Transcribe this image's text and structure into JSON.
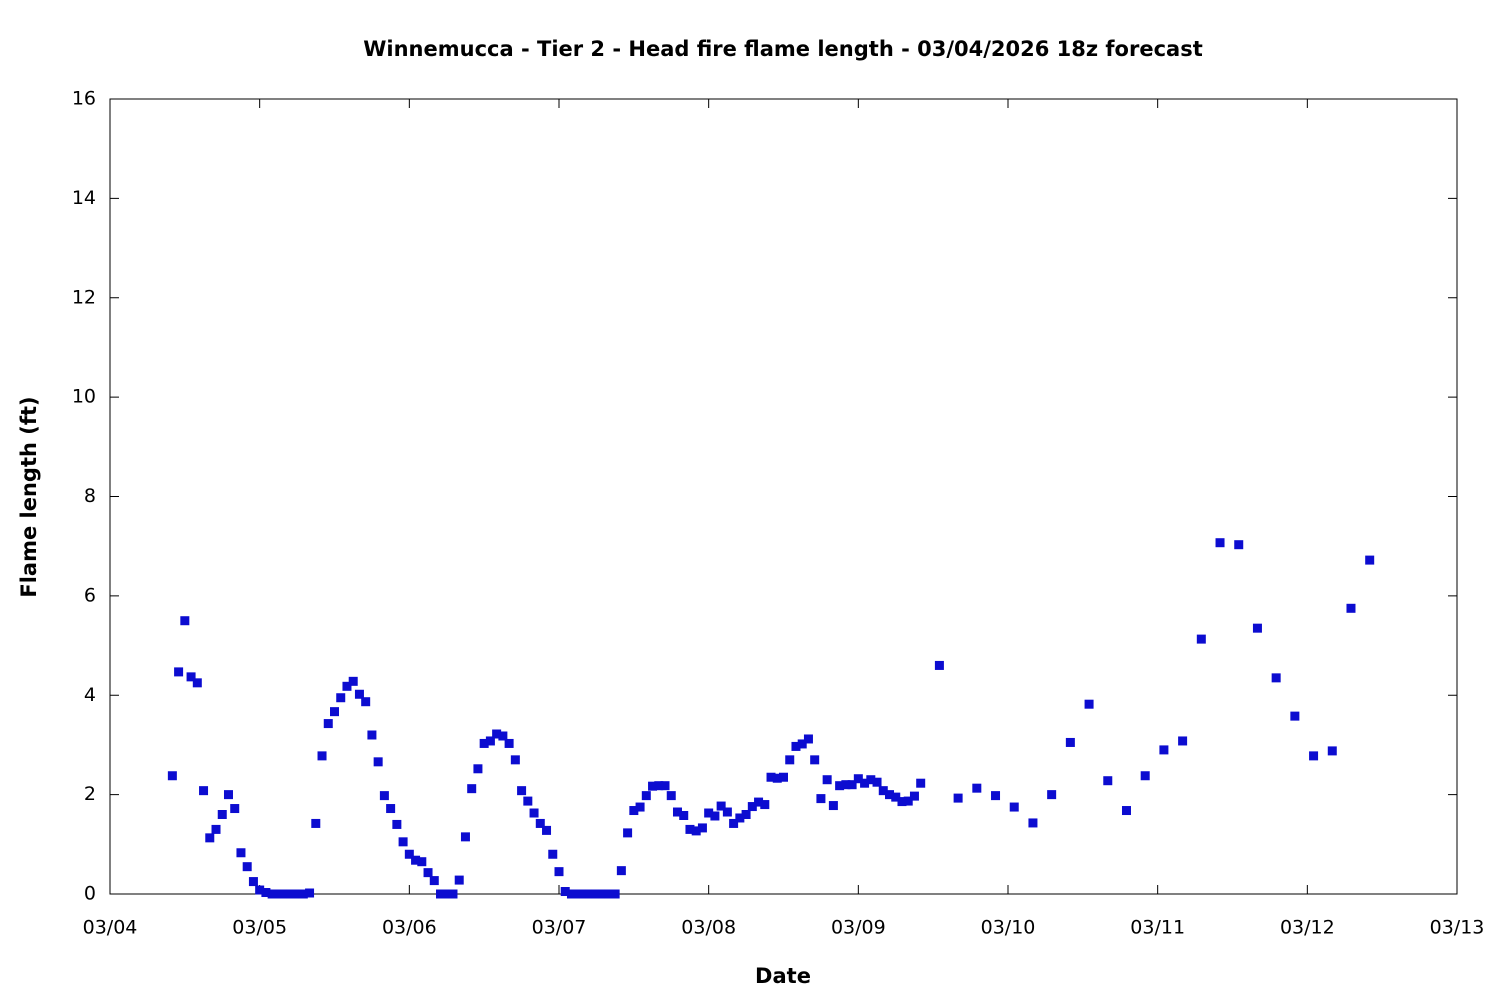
{
  "chart_data": {
    "type": "scatter",
    "title": "Winnemucca - Tier 2 - Head fire flame length - 03/04/2026 18z forecast",
    "xlabel": "Date",
    "ylabel": "Flame length (ft)",
    "color": "#0c0cd0",
    "x": [
      10,
      11,
      12,
      13,
      14,
      15,
      16,
      17,
      18,
      19,
      20,
      21,
      22,
      23,
      24,
      25,
      26,
      27,
      28,
      29,
      30,
      31,
      32,
      33,
      34,
      35,
      36,
      37,
      38,
      39,
      40,
      41,
      42,
      43,
      44,
      45,
      46,
      47,
      48,
      49,
      50,
      51,
      52,
      53,
      54,
      55,
      56,
      57,
      58,
      59,
      60,
      61,
      62,
      63,
      64,
      65,
      66,
      67,
      68,
      69,
      70,
      71,
      72,
      73,
      74,
      75,
      76,
      77,
      78,
      79,
      80,
      81,
      82,
      83,
      84,
      85,
      86,
      87,
      88,
      89,
      90,
      91,
      92,
      93,
      94,
      95,
      96,
      97,
      98,
      99,
      100,
      101,
      102,
      103,
      104,
      105,
      106,
      107,
      108,
      109,
      110,
      111,
      112,
      113,
      114,
      115,
      116,
      117,
      118,
      119,
      120,
      121,
      122,
      123,
      124,
      125,
      126,
      127,
      128,
      129,
      130,
      133,
      136,
      139,
      142,
      145,
      148,
      151,
      154,
      157,
      160,
      163,
      166,
      169,
      172,
      175,
      178,
      181,
      184,
      187,
      190,
      193,
      196,
      199,
      202
    ],
    "values": [
      2.38,
      4.47,
      5.5,
      4.37,
      4.25,
      2.08,
      1.13,
      1.3,
      1.6,
      2.0,
      1.72,
      0.83,
      0.55,
      0.25,
      0.08,
      0.03,
      0,
      0,
      0,
      0,
      0,
      0,
      0.02,
      1.42,
      2.78,
      3.43,
      3.67,
      3.95,
      4.18,
      4.28,
      4.02,
      3.87,
      3.2,
      2.66,
      1.98,
      1.72,
      1.4,
      1.05,
      0.8,
      0.68,
      0.65,
      0.43,
      0.27,
      0,
      0,
      0,
      0.28,
      1.15,
      2.12,
      2.52,
      3.03,
      3.08,
      3.22,
      3.18,
      3.03,
      2.7,
      2.08,
      1.87,
      1.63,
      1.42,
      1.28,
      0.8,
      0.45,
      0.05,
      0,
      0,
      0,
      0,
      0,
      0,
      0,
      0,
      0.47,
      1.23,
      1.68,
      1.75,
      1.98,
      2.17,
      2.18,
      2.18,
      1.98,
      1.65,
      1.58,
      1.3,
      1.27,
      1.33,
      1.63,
      1.57,
      1.77,
      1.65,
      1.42,
      1.53,
      1.6,
      1.76,
      1.85,
      1.8,
      2.35,
      2.33,
      2.35,
      2.7,
      2.97,
      3.02,
      3.12,
      2.7,
      1.92,
      2.3,
      1.78,
      2.18,
      2.2,
      2.2,
      2.32,
      2.23,
      2.3,
      2.25,
      2.08,
      2.0,
      1.95,
      1.86,
      1.87,
      1.97,
      2.23,
      4.6,
      1.93,
      2.13,
      1.98,
      1.75,
      1.43,
      2.0,
      3.05,
      3.82,
      2.28,
      1.68,
      2.38,
      2.9,
      3.08,
      5.13,
      7.07,
      7.03,
      5.35,
      4.35,
      3.58,
      2.78,
      2.88,
      5.75,
      6.72
    ],
    "xlim": [
      0,
      216
    ],
    "xticks": [
      {
        "value": 0,
        "label": "03/04"
      },
      {
        "value": 24,
        "label": "03/05"
      },
      {
        "value": 48,
        "label": "03/06"
      },
      {
        "value": 72,
        "label": "03/07"
      },
      {
        "value": 96,
        "label": "03/08"
      },
      {
        "value": 120,
        "label": "03/09"
      },
      {
        "value": 144,
        "label": "03/10"
      },
      {
        "value": 168,
        "label": "03/11"
      },
      {
        "value": 192,
        "label": "03/12"
      },
      {
        "value": 216,
        "label": "03/13"
      }
    ],
    "ylim": [
      0,
      16
    ],
    "yticks": [
      0,
      2,
      4,
      6,
      8,
      10,
      12,
      14,
      16
    ]
  }
}
